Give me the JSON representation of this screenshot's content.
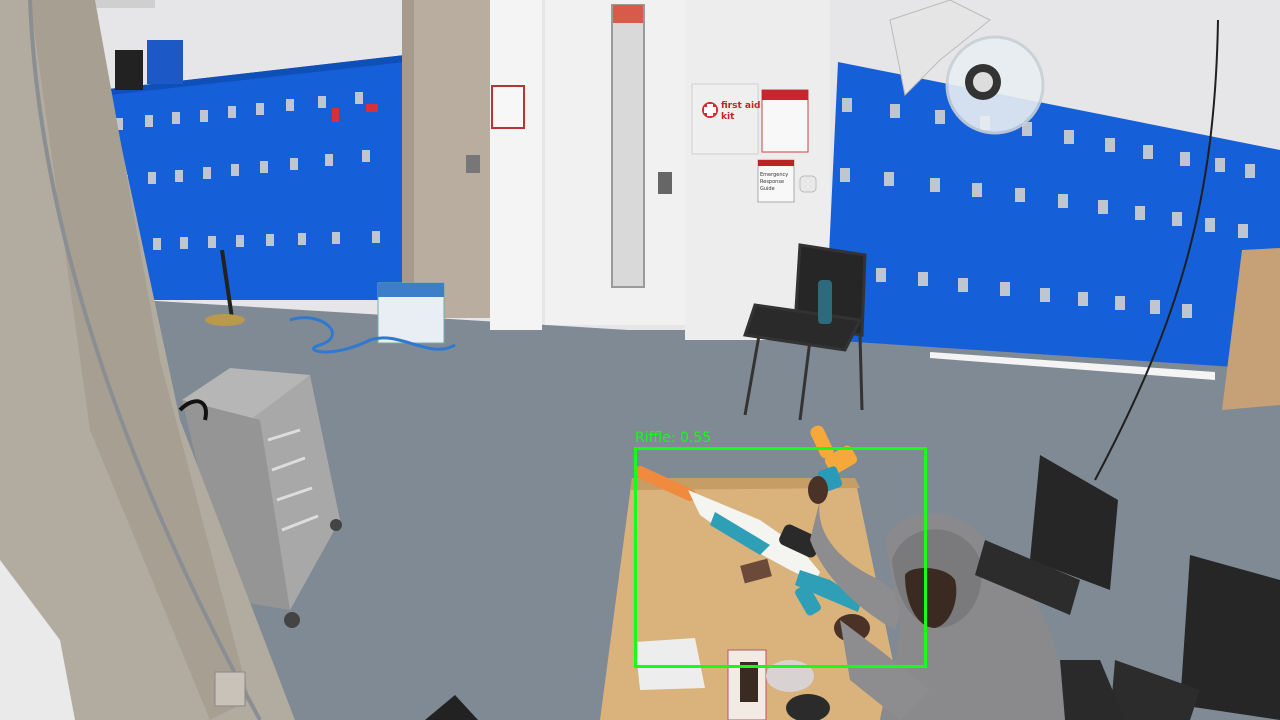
{
  "detection": {
    "label": "Riffle:",
    "confidence": "0.55",
    "box_color": "#14ff14"
  },
  "scene": {
    "first_aid_sign": "first aid kit",
    "emergency_sign": "Emergency Response Guide"
  },
  "colors": {
    "locker_blue": "#1560d8",
    "floor_gray": "#7f8a94",
    "wall_white": "#ececec",
    "table_wood": "#d9b27c"
  }
}
